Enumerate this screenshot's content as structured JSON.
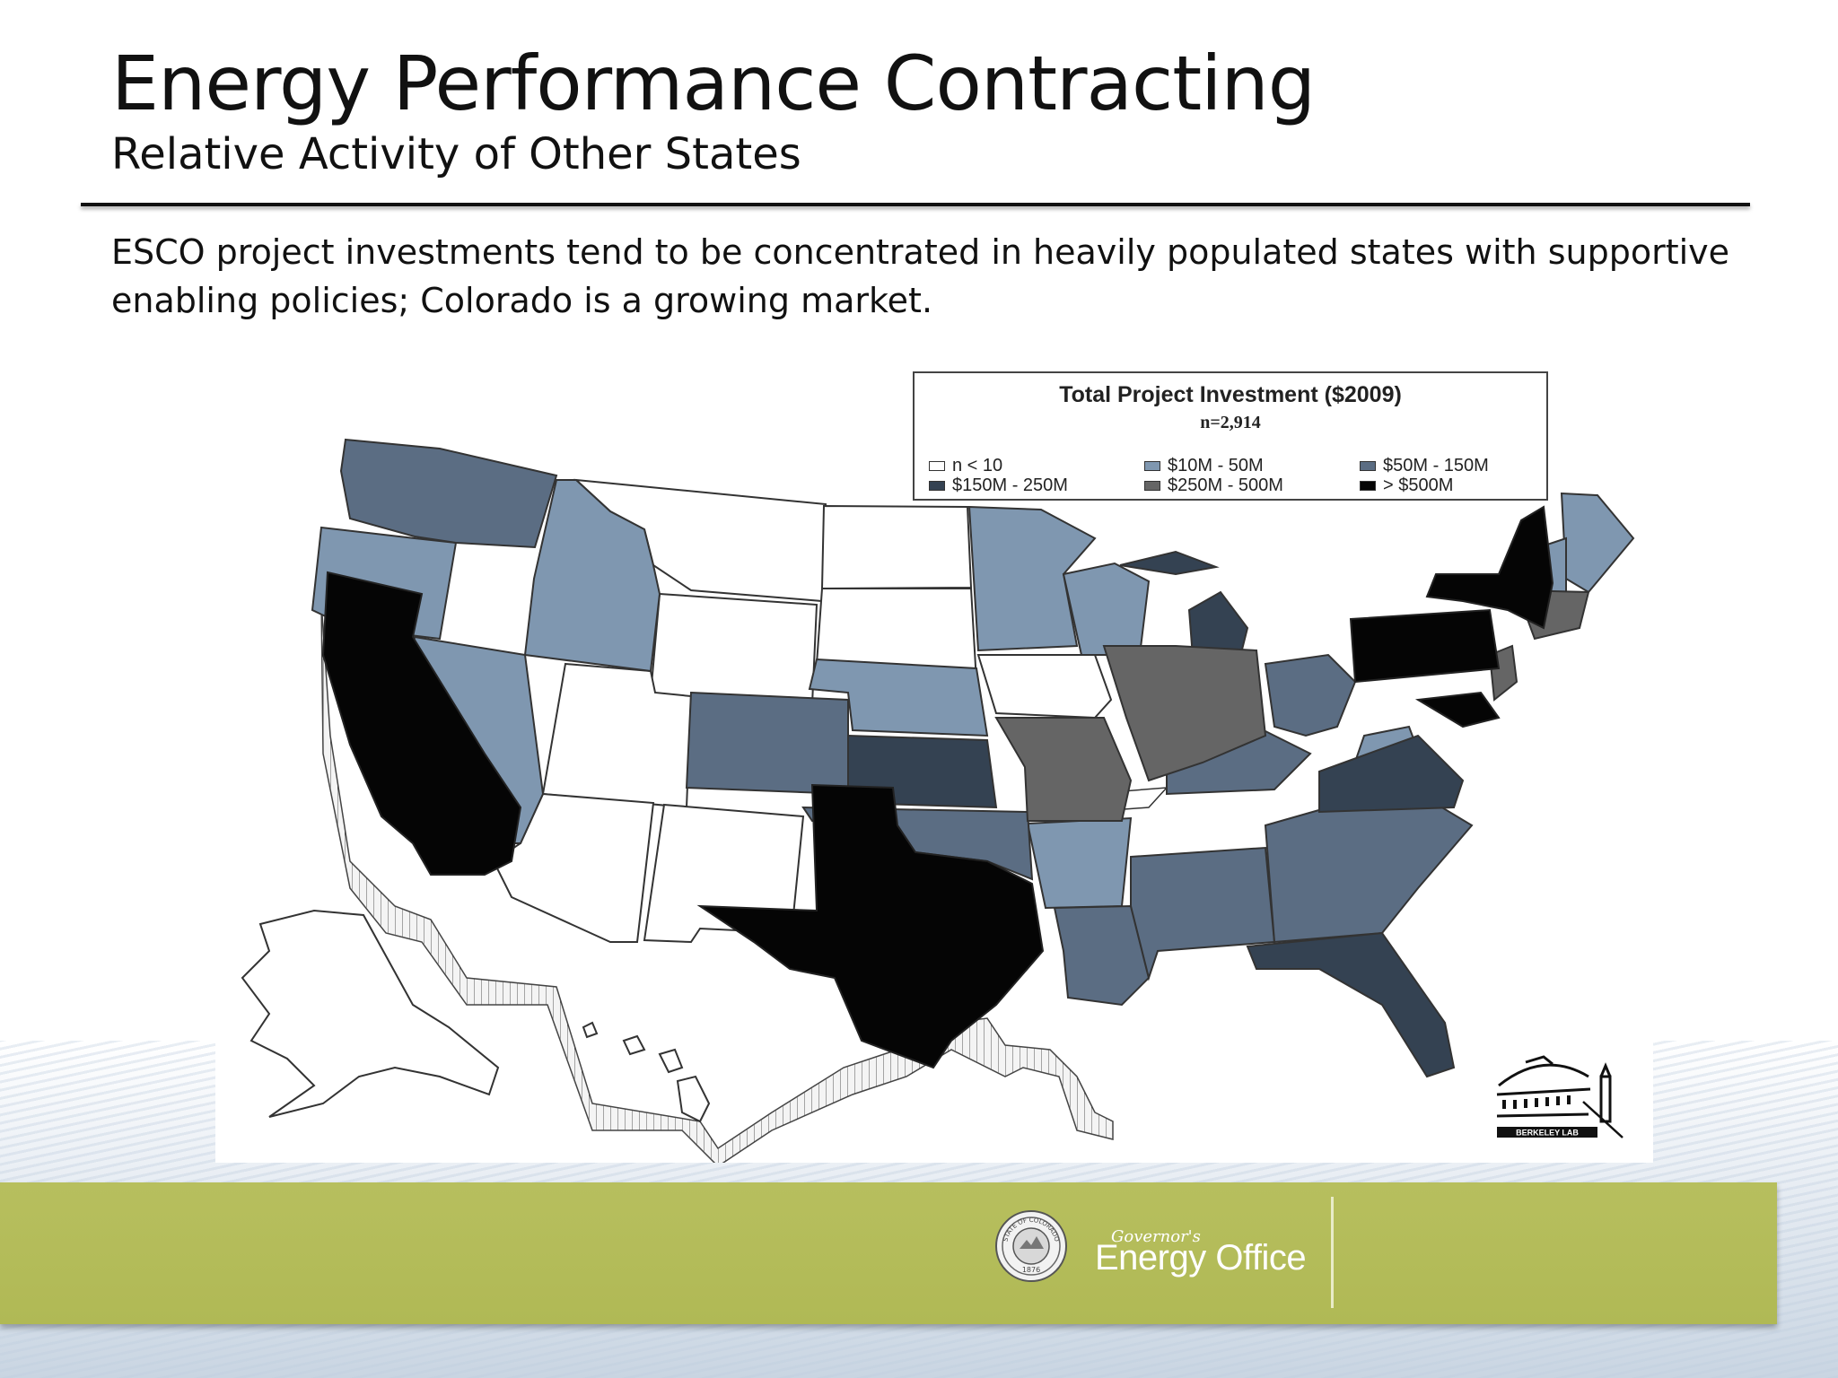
{
  "slide": {
    "title": "Energy Performance Contracting",
    "subtitle": "Relative Activity of Other States",
    "body": "ESCO project investments tend to be concentrated in heavily populated states with supportive enabling policies; Colorado is a growing market."
  },
  "map": {
    "legend": {
      "title": "Total Project Investment ($2009)",
      "n": "n=2,914",
      "items": [
        {
          "label": "n < 10",
          "color": "#ffffff"
        },
        {
          "label": "$10M - 50M",
          "color": "#7f97b0"
        },
        {
          "label": "$50M - 150M",
          "color": "#5b6d83"
        },
        {
          "label": "$150M - 250M",
          "color": "#344252"
        },
        {
          "label": "$250M - 500M",
          "color": "#656565"
        },
        {
          "label": "> $500M",
          "color": "#050505"
        }
      ]
    },
    "logo_text": "BERKELEY LAB"
  },
  "footer": {
    "governors": "Governor's",
    "energy_office": "Energy Office",
    "seal_text": "STATE OF COLORADO",
    "seal_year": "1876"
  }
}
